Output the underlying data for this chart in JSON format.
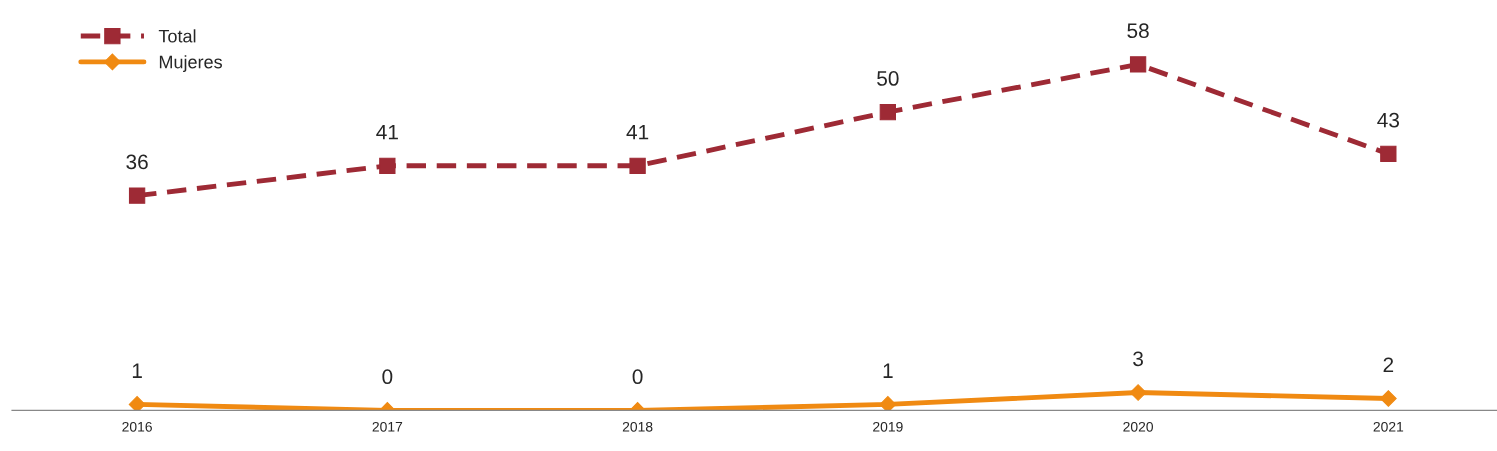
{
  "chart_data": {
    "type": "line",
    "categories": [
      "2016",
      "2017",
      "2018",
      "2019",
      "2020",
      "2021"
    ],
    "series": [
      {
        "name": "Total",
        "color": "#9e2a35",
        "values": [
          36,
          41,
          41,
          50,
          58,
          43
        ],
        "marker": "square",
        "line_style": "dashed"
      },
      {
        "name": "Mujeres",
        "color": "#f08a12",
        "values": [
          1,
          0,
          0,
          1,
          3,
          2
        ],
        "marker": "diamond",
        "line_style": "solid"
      }
    ],
    "data_labels": true,
    "legend": "top left",
    "grid": false,
    "tick_labels": "x"
  }
}
